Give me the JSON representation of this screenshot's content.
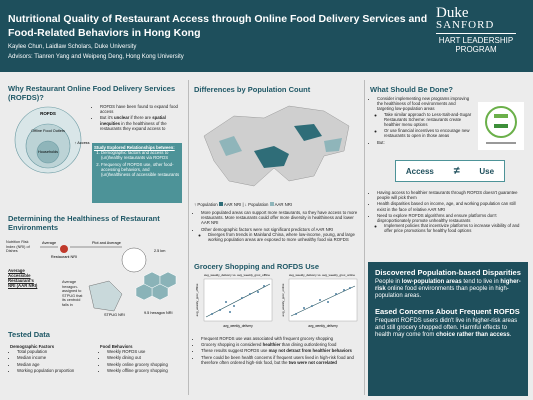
{
  "header": {
    "title": "Nutritional Quality of Restaurant Access through Online Food Delivery Services and Food-Related Behaviors in Hong Kong",
    "authors": "Kaylee Chun, Laidlaw Scholars, Duke University",
    "advisors": "Advisors: Tianren Yang and Weipeng Deng, Hong Kong University",
    "logo": {
      "duke": "Duke",
      "sanford": "SANFORD",
      "hart": "HART LEADERSHIP",
      "program": "PROGRAM"
    }
  },
  "why": {
    "heading": "Why Restaurant Online Food Delivery Services (ROFDS)?",
    "diagram": {
      "outer": "ROFDS",
      "middle": "Offline Food Outlets",
      "inner": "Households",
      "arrow": "↑ Access"
    },
    "bullets": [
      "ROFDS have been found to expand food access",
      [
        "But it's ",
        "unclear",
        " if there are ",
        "spatial inequities",
        " in the healthiness of the restaurants they expand access to"
      ]
    ],
    "box": {
      "title": "Study Explored Relationships between:",
      "items": [
        "Demographic factors and access to (un)healthy restaurants via ROFDS",
        "Frequency of ROFDS use, other food-accessing behaviors, and (un)healthiness of accessible restaurants"
      ]
    }
  },
  "determining": {
    "heading": "Determining the Healthiness of Restaurant Environments",
    "nri": "Nutrition Risk Index (NRI) of Dishes",
    "average1": "Average",
    "restaurant": "Restaurant NRI",
    "plot": "Plot and Average",
    "km": "2.5 km",
    "aar": "Average Accessible Restaurant's NRI (AAR NRI)",
    "average2": "Average hexagon-assigned to STPUG that its centroid falls in",
    "stpug": "STPUG NRI",
    "hexagon": "9.5 hexagon NRI"
  },
  "tested": {
    "heading": "Tested Data",
    "columns": [
      {
        "title": "Demographic Factors",
        "items": [
          "Total population",
          "Median income",
          "Median age",
          "Working population proportion"
        ]
      },
      {
        "title": "Food Behaviors",
        "items": [
          "Weekly ROFDS use",
          "Weekly dining out",
          "Weekly online grocery shopping",
          "Weekly offline grocery shopping"
        ]
      }
    ]
  },
  "differences": {
    "heading": "Differences by Population Count",
    "legend": [
      "↑ Population",
      "AAR NRI",
      "↓ Population",
      "AAR NRI"
    ],
    "bullets": [
      "More populated areas can support more restaurants, so they have access to more restaurants. More restaurants could offer more diversity in healthiness and lower AAR NRI",
      {
        "text": "Other demographic factors were not significant predictors of AAR NRI",
        "sub": [
          "Diverges from trends in Mainland China, where low-income, young, and large working population areas are exposed to more unhealthy food via ROFDS"
        ]
      }
    ]
  },
  "grocery": {
    "heading": "Grocery Shopping and ROFDS Use",
    "plots": [
      {
        "title": "avg_weekly_delivery vs. avg_weekly_groc_offline",
        "xlabel": "avg_weekly_delivery",
        "ylabel": "avg_weekly_groc_offline"
      },
      {
        "title": "avg_weekly_delivery vs. avg_weekly_groc_online",
        "xlabel": "avg_weekly_delivery",
        "ylabel": "avg_weekly_groc_online"
      }
    ],
    "bullets": [
      "Frequent ROFDS use was associated with frequent grocery shopping",
      [
        "Grocery shopping is considered ",
        "healthier",
        " than dining out/ordering food"
      ],
      [
        "These results suggest ROFDS use ",
        "may not detract from healthier behaviors"
      ],
      [
        "There could be been health concerns if frequent users lived in high-risk food and therefore often ordered high-risk food, but the ",
        "two were not correlated"
      ]
    ]
  },
  "what": {
    "heading": "What Should Be Done?",
    "bullets": [
      {
        "text": "Consider implementing new programs improving the healthiness of food environments and targeting low-population areas",
        "sub": [
          "Take similar approach to Less-Salt-and-Sugar Restaurants Scheme: restaurants create healthier menu options",
          "Or use financial incentives to encourage new restaurants to open in those areas"
        ]
      },
      "But:"
    ],
    "access": "Access",
    "neq": "≠",
    "use": "Use",
    "bullets2": [
      "Having access to healthier restaurants through ROFDS doesn't guarantee people will pick them",
      "Health disparities based on income, age, and working population can still exist in the face of relative AAR NRI",
      {
        "text": "Need to explore ROFDS algorithms and ensure platforms don't disproportionately promote unhealthy restaurants",
        "sub": [
          "Implement policies that incentivize platforms to increase visibility of and offer price promotions for healthy food options"
        ]
      }
    ]
  },
  "conclusion": {
    "heading1": "Discovered Population-based Disparities",
    "text1": [
      "People in ",
      "low-population areas",
      " tend to live in ",
      "higher-risk",
      " online food environments than people in high-population areas."
    ],
    "heading2": "Eased Concerns About Frequent ROFDS",
    "text2": [
      "Frequent ROFDS users didn't live in higher-risk areas and still grocery shopped often. Harmful effects to health may come from ",
      "choice rather than access",
      "."
    ]
  }
}
